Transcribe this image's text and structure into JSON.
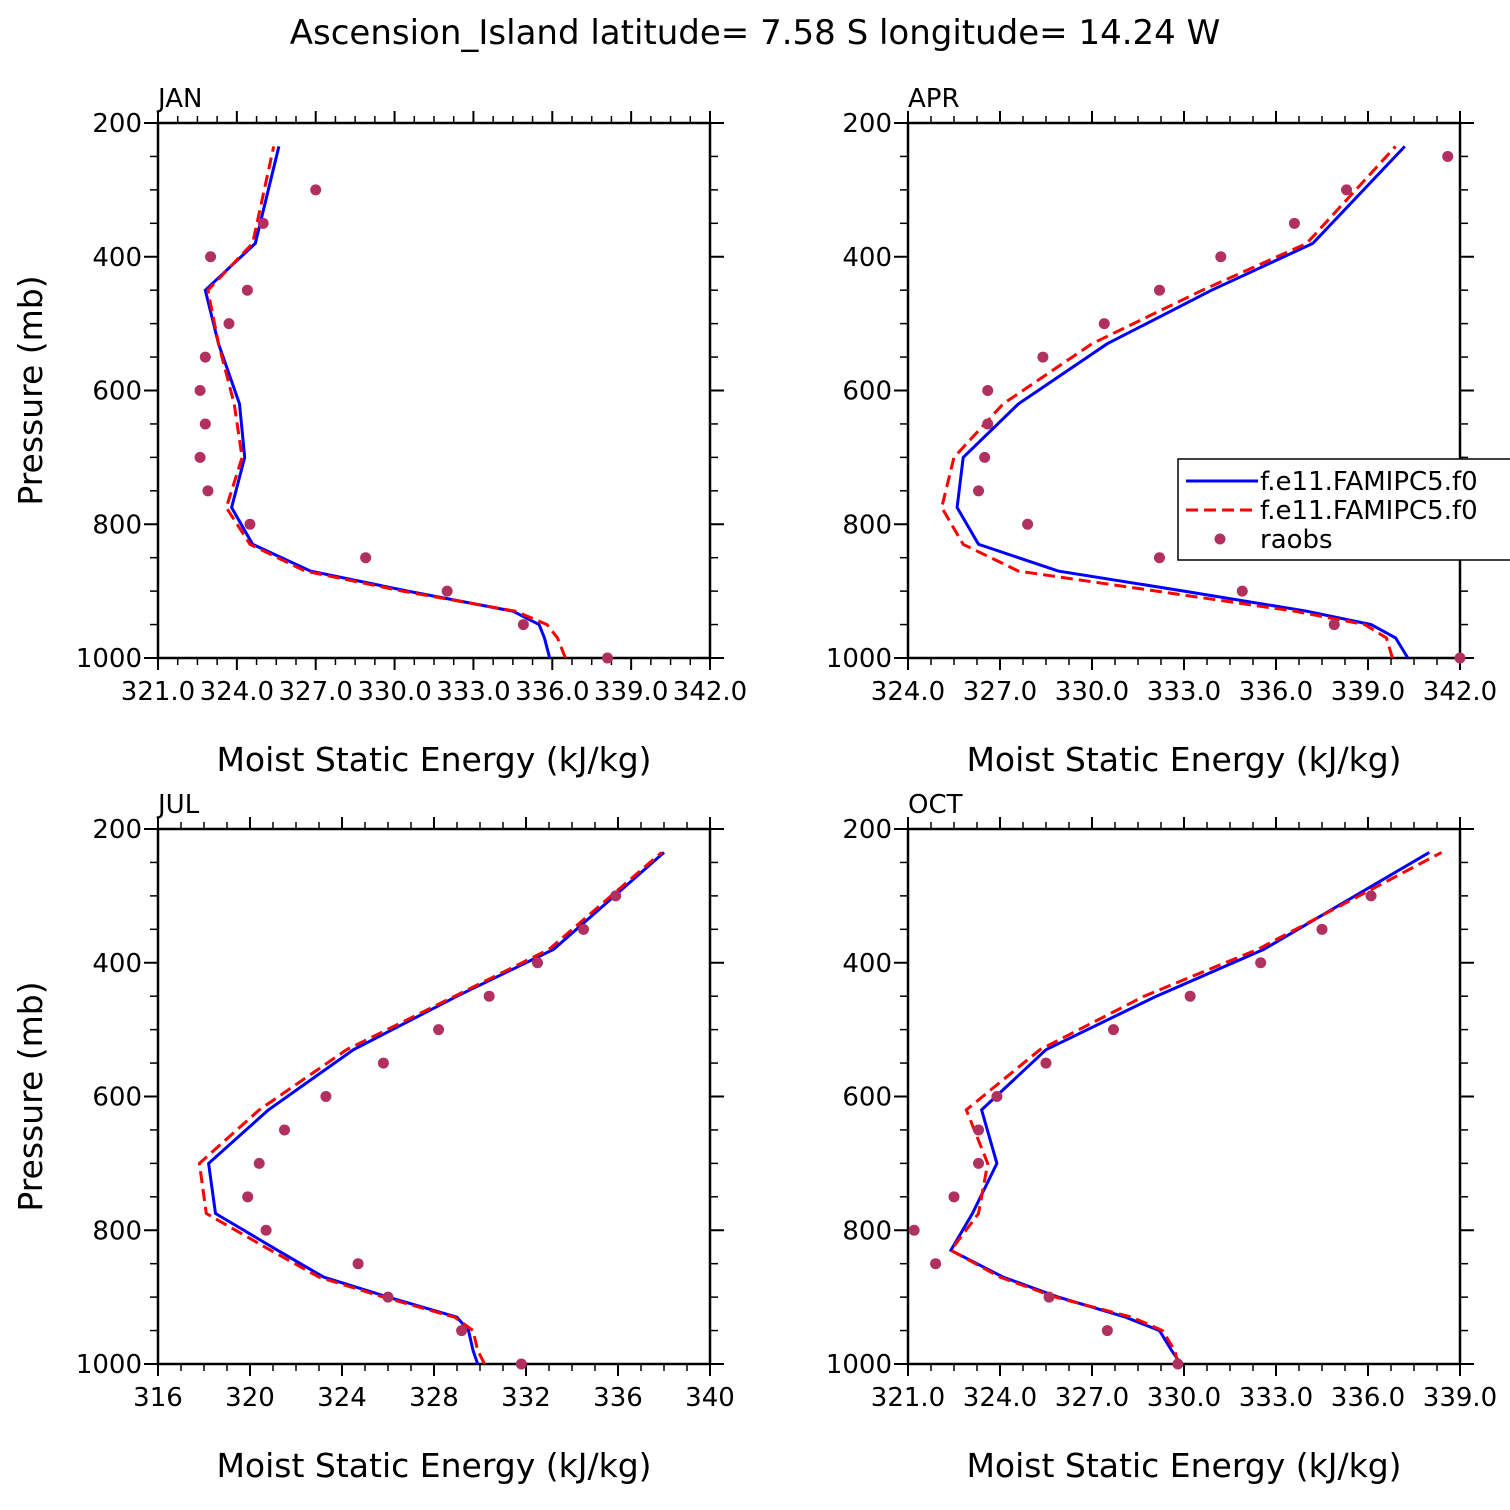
{
  "figure": {
    "title": "Ascension_Island  latitude= 7.58 S longitude= 14.24 W"
  },
  "legend": {
    "entries": [
      {
        "label": "f.e11.FAMIPC5.f0",
        "style": "solid",
        "color": "#0000ff"
      },
      {
        "label": "f.e11.FAMIPC5.f0",
        "style": "dashed",
        "color": "#ff0000"
      },
      {
        "label": "raobs",
        "style": "marker",
        "color": "#b03060"
      }
    ]
  },
  "colors": {
    "model1": "#0000ff",
    "model2": "#ff0000",
    "obs": "#b03060"
  },
  "chart_data": [
    {
      "type": "line",
      "panel_label": "JAN",
      "xlabel": "Moist Static Energy (kJ/kg)",
      "ylabel": "Pressure (mb)",
      "xlim": [
        321.0,
        342.0
      ],
      "xticks": [
        "321.0",
        "324.0",
        "327.0",
        "330.0",
        "333.0",
        "336.0",
        "339.0",
        "342.0"
      ],
      "ylim": [
        1000,
        200
      ],
      "yticks": [
        "200",
        "400",
        "600",
        "800",
        "1000"
      ],
      "series": [
        {
          "name": "f.e11.FAMIPC5.f0",
          "style": "solid",
          "x": [
            335.9,
            335.7,
            335.5,
            334.5,
            330.5,
            326.8,
            324.6,
            323.8,
            324.3,
            324.1,
            323.3,
            322.8,
            324.7,
            325.6
          ],
          "y": [
            1000,
            970,
            950,
            930,
            900,
            870,
            830,
            775,
            700,
            620,
            530,
            450,
            380,
            235
          ]
        },
        {
          "name": "f.e11.FAMIPC5.f0",
          "style": "dashed",
          "x": [
            336.5,
            336.2,
            335.8,
            334.6,
            330.3,
            326.6,
            324.5,
            323.6,
            324.2,
            323.9,
            323.3,
            322.9,
            324.6,
            325.4
          ],
          "y": [
            1000,
            970,
            950,
            930,
            900,
            870,
            830,
            775,
            700,
            620,
            530,
            450,
            380,
            235
          ]
        },
        {
          "name": "raobs",
          "style": "marker",
          "x": [
            338.1,
            334.9,
            332.0,
            328.9,
            324.5,
            322.9,
            322.6,
            322.8,
            322.6,
            322.8,
            323.7,
            324.4,
            323.0,
            325.0,
            327.0
          ],
          "y": [
            1000,
            950,
            900,
            850,
            800,
            750,
            700,
            650,
            600,
            550,
            500,
            450,
            400,
            350,
            300
          ]
        }
      ]
    },
    {
      "type": "line",
      "panel_label": "APR",
      "xlabel": "Moist Static Energy (kJ/kg)",
      "ylabel": "",
      "xlim": [
        324.0,
        342.0
      ],
      "xticks": [
        "324.0",
        "327.0",
        "330.0",
        "333.0",
        "336.0",
        "339.0",
        "342.0"
      ],
      "ylim": [
        1000,
        200
      ],
      "yticks": [
        "200",
        "400",
        "600",
        "800",
        "1000"
      ],
      "series": [
        {
          "name": "f.e11.FAMIPC5.f0",
          "style": "solid",
          "x": [
            340.3,
            339.9,
            339.1,
            337.0,
            333.0,
            328.9,
            326.3,
            325.6,
            325.8,
            327.6,
            330.5,
            333.9,
            337.2,
            340.2
          ],
          "y": [
            1000,
            970,
            950,
            930,
            900,
            870,
            830,
            775,
            700,
            620,
            530,
            450,
            380,
            235
          ]
        },
        {
          "name": "f.e11.FAMIPC5.f0",
          "style": "dashed",
          "x": [
            339.8,
            339.6,
            338.9,
            336.6,
            332.1,
            327.6,
            325.8,
            325.1,
            325.5,
            327.1,
            330.0,
            333.6,
            337.0,
            339.9
          ],
          "y": [
            1000,
            970,
            950,
            930,
            900,
            870,
            830,
            775,
            700,
            620,
            530,
            450,
            380,
            235
          ]
        },
        {
          "name": "raobs",
          "style": "marker",
          "x": [
            342.0,
            337.9,
            334.9,
            332.2,
            327.9,
            326.3,
            326.5,
            326.6,
            326.6,
            328.4,
            330.4,
            332.2,
            334.2,
            336.6,
            338.3,
            341.6
          ],
          "y": [
            1000,
            950,
            900,
            850,
            800,
            750,
            700,
            650,
            600,
            550,
            500,
            450,
            400,
            350,
            300,
            250
          ]
        }
      ]
    },
    {
      "type": "line",
      "panel_label": "JUL",
      "xlabel": "Moist Static Energy (kJ/kg)",
      "ylabel": "Pressure (mb)",
      "xlim": [
        316,
        340
      ],
      "xticks": [
        "316",
        "320",
        "324",
        "328",
        "332",
        "336",
        "340"
      ],
      "ylim": [
        1000,
        200
      ],
      "yticks": [
        "200",
        "400",
        "600",
        "800",
        "1000"
      ],
      "series": [
        {
          "name": "f.e11.FAMIPC5.f0",
          "style": "solid",
          "x": [
            329.9,
            329.7,
            329.5,
            329.0,
            326.0,
            323.2,
            321.2,
            318.5,
            318.2,
            320.8,
            324.5,
            329.0,
            333.2,
            338.0
          ],
          "y": [
            1000,
            980,
            950,
            930,
            900,
            870,
            830,
            775,
            700,
            620,
            530,
            450,
            380,
            235
          ]
        },
        {
          "name": "f.e11.FAMIPC5.f0",
          "style": "dashed",
          "x": [
            330.2,
            329.9,
            329.7,
            328.9,
            325.8,
            323.0,
            320.9,
            318.1,
            317.8,
            320.4,
            324.2,
            328.9,
            333.0,
            337.9
          ],
          "y": [
            1000,
            980,
            950,
            930,
            900,
            870,
            830,
            775,
            700,
            620,
            530,
            450,
            380,
            235
          ]
        },
        {
          "name": "raobs",
          "style": "marker",
          "x": [
            331.8,
            329.2,
            326.0,
            324.7,
            320.7,
            319.9,
            320.4,
            321.5,
            323.3,
            325.8,
            328.2,
            330.4,
            332.5,
            334.5,
            335.9
          ],
          "y": [
            1000,
            950,
            900,
            850,
            800,
            750,
            700,
            650,
            600,
            550,
            500,
            450,
            400,
            350,
            300
          ]
        }
      ]
    },
    {
      "type": "line",
      "panel_label": "OCT",
      "xlabel": "Moist Static Energy (kJ/kg)",
      "ylabel": "",
      "xlim": [
        321.0,
        339.0
      ],
      "xticks": [
        "321.0",
        "324.0",
        "327.0",
        "330.0",
        "333.0",
        "336.0",
        "339.0"
      ],
      "ylim": [
        1000,
        200
      ],
      "yticks": [
        "200",
        "400",
        "600",
        "800",
        "1000"
      ],
      "series": [
        {
          "name": "f.e11.FAMIPC5.f0",
          "style": "solid",
          "x": [
            329.9,
            329.6,
            329.2,
            328.1,
            325.9,
            324.1,
            322.4,
            323.1,
            323.9,
            323.4,
            325.5,
            329.1,
            332.6,
            338.0
          ],
          "y": [
            1000,
            980,
            950,
            930,
            900,
            870,
            830,
            775,
            700,
            620,
            530,
            450,
            380,
            235
          ]
        },
        {
          "name": "f.e11.FAMIPC5.f0",
          "style": "dashed",
          "x": [
            329.8,
            329.7,
            329.3,
            328.3,
            325.8,
            324.0,
            322.4,
            323.3,
            323.6,
            322.9,
            325.3,
            328.7,
            332.4,
            338.4
          ],
          "y": [
            1000,
            980,
            950,
            930,
            900,
            870,
            830,
            775,
            700,
            620,
            530,
            450,
            380,
            235
          ]
        },
        {
          "name": "raobs",
          "style": "marker",
          "x": [
            329.8,
            327.5,
            325.6,
            321.9,
            321.2,
            322.5,
            323.3,
            323.3,
            323.9,
            325.5,
            327.7,
            330.2,
            332.5,
            334.5,
            336.1
          ],
          "y": [
            1000,
            950,
            900,
            850,
            800,
            750,
            700,
            650,
            600,
            550,
            500,
            450,
            400,
            350,
            300
          ]
        }
      ]
    }
  ]
}
